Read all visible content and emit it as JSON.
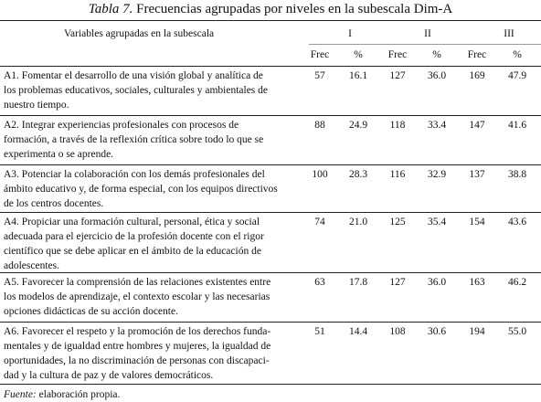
{
  "title": {
    "label": "Tabla 7.",
    "text": "Frecuencias agrupadas por niveles en la subescala Dim-A"
  },
  "table": {
    "header": [
      "Variables agrupadas en la subescala",
      "I",
      "II",
      "III"
    ],
    "subheader": [
      "Frec",
      "%",
      "Frec",
      "%",
      "Frec",
      "%"
    ],
    "rows": [
      {
        "lines": [
          "A1. Fomentar el desarrollo de una visión global y analítica de",
          "los problemas educativos, sociales, culturales y ambientales de",
          "nuestro tiempo."
        ],
        "values": [
          "57",
          "16.1",
          "127",
          "36.0",
          "169",
          "47.9"
        ]
      },
      {
        "lines": [
          "A2. Integrar experiencias profesionales con procesos de",
          "formación, a través de la reflexión crítica sobre todo lo que se",
          "experimenta o se aprende."
        ],
        "values": [
          "88",
          "24.9",
          "118",
          "33.4",
          "147",
          "41.6"
        ]
      },
      {
        "lines": [
          "A3. Potenciar la colaboración con los demás profesionales del",
          "ámbito educativo y, de forma especial, con los equipos directivos",
          "de los centros docentes."
        ],
        "values": [
          "100",
          "28.3",
          "116",
          "32.9",
          "137",
          "38.8"
        ]
      },
      {
        "lines": [
          "A4. Propiciar una formación cultural, personal, ética y social",
          "adecuada para el ejercicio de la profesión docente con el rigor",
          "científico que se debe aplicar en el ámbito de la educación de",
          "adolescentes."
        ],
        "values": [
          "74",
          "21.0",
          "125",
          "35.4",
          "154",
          "43.6"
        ]
      },
      {
        "lines": [
          "A5. Favorecer la comprensión de las relaciones existentes entre",
          "los modelos de aprendizaje, el contexto escolar y las necesarias",
          "opciones didácticas de su acción docente."
        ],
        "values": [
          "63",
          "17.8",
          "127",
          "36.0",
          "163",
          "46.2"
        ]
      },
      {
        "lines": [
          "A6. Favorecer el respeto y la promoción de los derechos funda-",
          "mentales y de igualdad entre hombres y mujeres, la igualdad de",
          "oportunidades, la no discriminación de personas con discapaci-",
          "dad y la cultura de paz y de valores democráticos."
        ],
        "values": [
          "51",
          "14.4",
          "108",
          "30.6",
          "194",
          "55.0"
        ]
      }
    ]
  },
  "footer": {
    "label": "Fuente:",
    "text": "elaboración propia."
  }
}
